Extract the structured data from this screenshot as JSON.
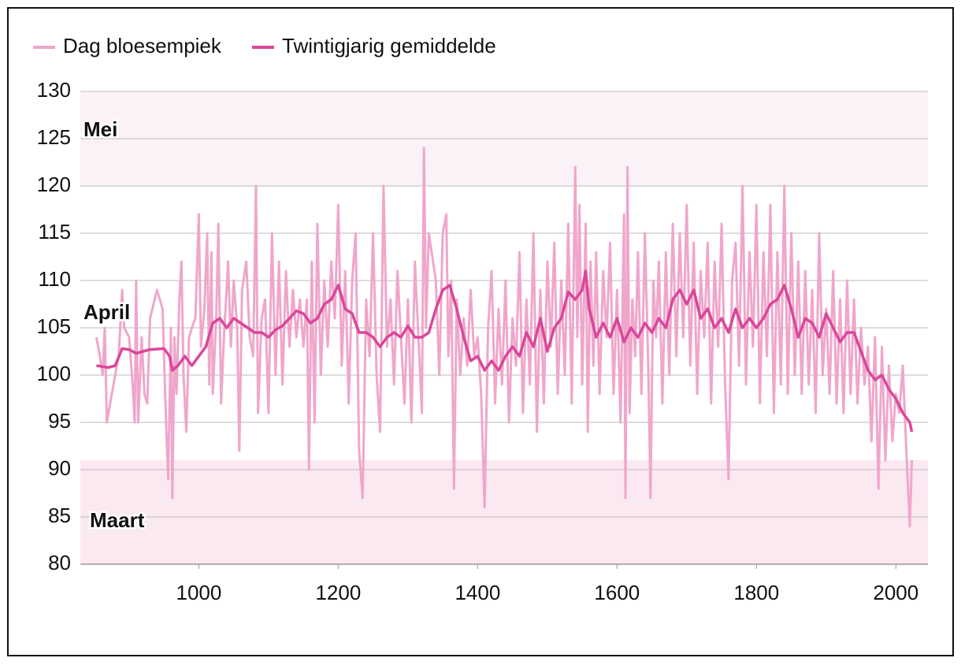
{
  "chart_data": {
    "type": "line",
    "legend": "top-left",
    "grid": true,
    "xlim": [
      830,
      2046
    ],
    "ylim": [
      80,
      130
    ],
    "xticks": [
      1000,
      1200,
      1400,
      1600,
      1800,
      2000
    ],
    "yticks": [
      80,
      85,
      90,
      95,
      100,
      105,
      110,
      115,
      120,
      125,
      130
    ],
    "regions": [
      {
        "label": "Mei",
        "from": 120,
        "to": 130,
        "color": "#fbf2f7"
      },
      {
        "label": "Maart",
        "from": 80,
        "to": 91,
        "color": "#fbe9f2"
      }
    ],
    "annotations": [
      {
        "label": "April",
        "y": 106.5
      }
    ],
    "series": [
      {
        "name": "Dag bloesempiek",
        "color": "#f0a6cb",
        "width": 3,
        "x": [
          853,
          858,
          862,
          865,
          868,
          880,
          885,
          890,
          893,
          900,
          905,
          908,
          910,
          913,
          918,
          922,
          926,
          930,
          940,
          948,
          953,
          956,
          960,
          962,
          965,
          968,
          972,
          975,
          978,
          982,
          986,
          990,
          995,
          1000,
          1003,
          1008,
          1012,
          1015,
          1018,
          1020,
          1025,
          1028,
          1032,
          1036,
          1042,
          1046,
          1050,
          1055,
          1058,
          1062,
          1068,
          1073,
          1078,
          1082,
          1085,
          1090,
          1095,
          1100,
          1105,
          1110,
          1115,
          1120,
          1125,
          1130,
          1135,
          1140,
          1145,
          1150,
          1155,
          1158,
          1162,
          1166,
          1170,
          1175,
          1180,
          1185,
          1190,
          1195,
          1200,
          1205,
          1210,
          1215,
          1220,
          1225,
          1230,
          1235,
          1240,
          1245,
          1250,
          1255,
          1260,
          1265,
          1270,
          1275,
          1280,
          1285,
          1290,
          1295,
          1300,
          1305,
          1310,
          1315,
          1320,
          1323,
          1326,
          1330,
          1340,
          1345,
          1350,
          1355,
          1358,
          1362,
          1366,
          1370,
          1375,
          1380,
          1385,
          1390,
          1395,
          1400,
          1405,
          1410,
          1415,
          1420,
          1425,
          1430,
          1435,
          1440,
          1445,
          1450,
          1455,
          1460,
          1465,
          1470,
          1475,
          1480,
          1485,
          1490,
          1495,
          1500,
          1505,
          1510,
          1515,
          1520,
          1525,
          1530,
          1535,
          1540,
          1543,
          1546,
          1550,
          1555,
          1558,
          1562,
          1566,
          1570,
          1575,
          1580,
          1585,
          1590,
          1595,
          1600,
          1605,
          1610,
          1612,
          1615,
          1618,
          1622,
          1626,
          1630,
          1635,
          1640,
          1645,
          1648,
          1652,
          1656,
          1660,
          1665,
          1670,
          1675,
          1680,
          1685,
          1690,
          1695,
          1700,
          1705,
          1710,
          1715,
          1720,
          1725,
          1730,
          1735,
          1740,
          1745,
          1750,
          1755,
          1760,
          1765,
          1770,
          1775,
          1780,
          1785,
          1790,
          1795,
          1800,
          1805,
          1810,
          1815,
          1820,
          1825,
          1830,
          1835,
          1840,
          1845,
          1850,
          1855,
          1860,
          1865,
          1870,
          1875,
          1880,
          1885,
          1890,
          1895,
          1900,
          1905,
          1910,
          1915,
          1920,
          1925,
          1930,
          1935,
          1940,
          1945,
          1950,
          1955,
          1960,
          1965,
          1970,
          1975,
          1980,
          1985,
          1990,
          1995,
          2000,
          2005,
          2010,
          2015,
          2020,
          2023
        ],
        "values": [
          104,
          102,
          100,
          105,
          95,
          100,
          102,
          109,
          105,
          104,
          99,
          95,
          110,
          95,
          104,
          98,
          97,
          106,
          109,
          107,
          95,
          89,
          105,
          87,
          104,
          98,
          108,
          112,
          100,
          94,
          104,
          105,
          106,
          117,
          103,
          107,
          115,
          99,
          113,
          98,
          106,
          116,
          97,
          104,
          112,
          103,
          110,
          105,
          92,
          109,
          112,
          104,
          102,
          120,
          96,
          106,
          108,
          96,
          115,
          100,
          112,
          99,
          111,
          103,
          109,
          104,
          108,
          103,
          108,
          90,
          112,
          95,
          116,
          100,
          110,
          103,
          112,
          106,
          118,
          101,
          111,
          97,
          110,
          115,
          92,
          87,
          108,
          102,
          115,
          100,
          94,
          120,
          103,
          108,
          99,
          111,
          104,
          97,
          108,
          95,
          112,
          104,
          96,
          124,
          105,
          115,
          110,
          100,
          115,
          117,
          102,
          110,
          88,
          108,
          100,
          106,
          101,
          109,
          102,
          104,
          98,
          86,
          105,
          111,
          97,
          107,
          99,
          110,
          95,
          106,
          101,
          113,
          96,
          108,
          99,
          115,
          94,
          109,
          97,
          112,
          103,
          114,
          98,
          110,
          100,
          116,
          97,
          122,
          104,
          118,
          99,
          116,
          94,
          112,
          101,
          113,
          98,
          111,
          104,
          114,
          98,
          109,
          95,
          117,
          87,
          122,
          96,
          108,
          102,
          113,
          98,
          115,
          100,
          87,
          110,
          104,
          112,
          97,
          113,
          100,
          116,
          102,
          115,
          104,
          118,
          101,
          114,
          98,
          111,
          104,
          114,
          97,
          112,
          103,
          116,
          99,
          89,
          110,
          114,
          101,
          120,
          99,
          113,
          103,
          118,
          97,
          113,
          102,
          118,
          96,
          113,
          99,
          120,
          98,
          115,
          100,
          112,
          98,
          111,
          99,
          109,
          96,
          115,
          100,
          107,
          98,
          111,
          97,
          108,
          96,
          110,
          98,
          108,
          97,
          105,
          99,
          103,
          93,
          104,
          88,
          103,
          91,
          101,
          93,
          98,
          96,
          101,
          92,
          84,
          91
        ]
      },
      {
        "name": "Twintigjarig gemiddelde",
        "color": "#d9479a",
        "width": 3.5,
        "x": [
          853,
          870,
          880,
          890,
          900,
          910,
          920,
          930,
          950,
          958,
          962,
          970,
          980,
          990,
          1000,
          1010,
          1020,
          1030,
          1040,
          1050,
          1060,
          1070,
          1080,
          1090,
          1100,
          1110,
          1120,
          1130,
          1140,
          1150,
          1160,
          1170,
          1180,
          1190,
          1200,
          1210,
          1220,
          1230,
          1240,
          1250,
          1260,
          1270,
          1280,
          1290,
          1300,
          1310,
          1320,
          1330,
          1340,
          1350,
          1360,
          1370,
          1380,
          1390,
          1400,
          1410,
          1420,
          1430,
          1440,
          1450,
          1460,
          1470,
          1480,
          1490,
          1500,
          1510,
          1520,
          1530,
          1540,
          1550,
          1555,
          1560,
          1570,
          1580,
          1590,
          1600,
          1610,
          1620,
          1630,
          1640,
          1650,
          1660,
          1670,
          1680,
          1690,
          1700,
          1710,
          1720,
          1730,
          1740,
          1750,
          1760,
          1770,
          1780,
          1790,
          1800,
          1810,
          1820,
          1830,
          1840,
          1850,
          1860,
          1870,
          1880,
          1890,
          1900,
          1910,
          1920,
          1930,
          1940,
          1950,
          1960,
          1970,
          1980,
          1990,
          2000,
          2010,
          2020,
          2023
        ],
        "values": [
          101,
          100.8,
          101,
          102.8,
          102.7,
          102.3,
          102.5,
          102.7,
          102.8,
          102,
          100.5,
          101,
          102,
          101,
          102,
          103,
          105.5,
          106,
          105,
          106,
          105.5,
          105,
          104.5,
          104.5,
          104,
          104.8,
          105.2,
          106,
          106.8,
          106.5,
          105.5,
          106,
          107.5,
          108,
          109.5,
          107,
          106.5,
          104.5,
          104.5,
          104,
          103,
          104,
          104.5,
          104,
          105.2,
          104,
          104,
          104.5,
          107,
          109,
          109.5,
          107,
          104,
          101.5,
          102,
          100.5,
          101.5,
          100.5,
          102,
          103,
          102,
          104.5,
          103,
          106,
          102.5,
          105,
          106,
          108.8,
          108,
          109,
          111,
          107,
          104,
          105.5,
          104,
          106,
          103.5,
          105,
          104,
          105.5,
          104.5,
          106,
          105,
          108,
          109,
          107.5,
          109,
          106,
          107,
          105,
          106,
          104.5,
          107,
          105,
          106,
          105,
          106,
          107.5,
          108,
          109.5,
          107,
          104,
          106,
          105.5,
          104,
          106.5,
          105,
          103.5,
          104.5,
          104.5,
          102.5,
          100.5,
          99.5,
          100,
          98.5,
          97.5,
          96,
          95,
          94
        ]
      }
    ]
  }
}
